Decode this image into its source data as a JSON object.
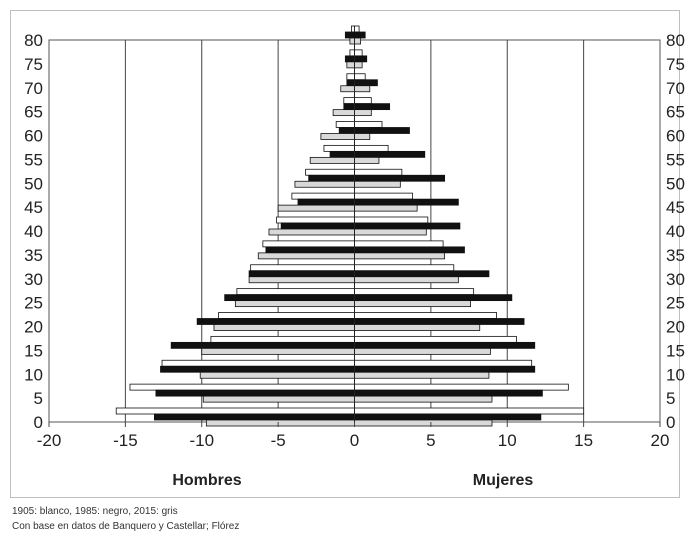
{
  "chart_data": {
    "type": "bar",
    "orientation": "horizontal",
    "subtype": "population-pyramid",
    "title": "",
    "xlabel": "",
    "ylabel": "",
    "group_labels": {
      "left": "Hombres",
      "right": "Mujeres"
    },
    "xlim": [
      -20,
      20
    ],
    "x_ticks": [
      -20,
      -15,
      -10,
      -5,
      0,
      5,
      10,
      15,
      20
    ],
    "ylim": [
      0,
      80
    ],
    "y_ticks": [
      0,
      5,
      10,
      15,
      20,
      25,
      30,
      35,
      40,
      45,
      50,
      55,
      60,
      65,
      70,
      75,
      80
    ],
    "grid": "vertical",
    "legend": "none",
    "categories": [
      0,
      5,
      10,
      15,
      20,
      25,
      30,
      35,
      40,
      45,
      50,
      55,
      60,
      65,
      70,
      75,
      80
    ],
    "series": [
      {
        "color": "#ffffff",
        "hombres": [
          -15.6,
          -14.7,
          -12.6,
          -9.4,
          -8.9,
          -7.7,
          -6.8,
          -6.0,
          -5.1,
          -4.1,
          -3.2,
          -2.0,
          -1.2,
          -0.7,
          -0.5,
          -0.3,
          -0.2
        ],
        "mujeres": [
          15.0,
          14.0,
          11.6,
          10.6,
          9.3,
          7.8,
          6.5,
          5.8,
          4.8,
          3.8,
          3.1,
          2.2,
          1.8,
          1.1,
          0.7,
          0.5,
          0.3
        ]
      },
      {
        "color": "#111111",
        "hombres": [
          -13.1,
          -13.0,
          -12.7,
          -12.0,
          -10.3,
          -8.5,
          -6.9,
          -5.8,
          -4.8,
          -3.7,
          -3.0,
          -1.6,
          -1.0,
          -0.7,
          -0.5,
          -0.6,
          -0.6
        ],
        "mujeres": [
          12.2,
          12.3,
          11.8,
          11.8,
          11.1,
          10.3,
          8.8,
          7.2,
          6.9,
          6.8,
          5.9,
          4.6,
          3.6,
          2.3,
          1.5,
          0.8,
          0.7
        ]
      },
      {
        "color": "#d9d9d9",
        "hombres": [
          -9.7,
          -9.9,
          -10.1,
          -10.0,
          -9.2,
          -7.8,
          -6.9,
          -6.3,
          -5.6,
          -5.0,
          -3.9,
          -2.9,
          -2.2,
          -1.4,
          -0.9,
          -0.5,
          -0.3
        ],
        "mujeres": [
          9.0,
          9.0,
          8.8,
          8.9,
          8.2,
          7.6,
          6.8,
          5.9,
          4.7,
          4.1,
          3.0,
          1.6,
          1.0,
          1.1,
          1.0,
          0.5,
          0.4
        ]
      }
    ]
  },
  "footnotes": {
    "legend_note": "1905: blanco, 1985: negro, 2015: gris",
    "source_note": "Con base en datos de Banquero y Castellar; Flórez"
  }
}
